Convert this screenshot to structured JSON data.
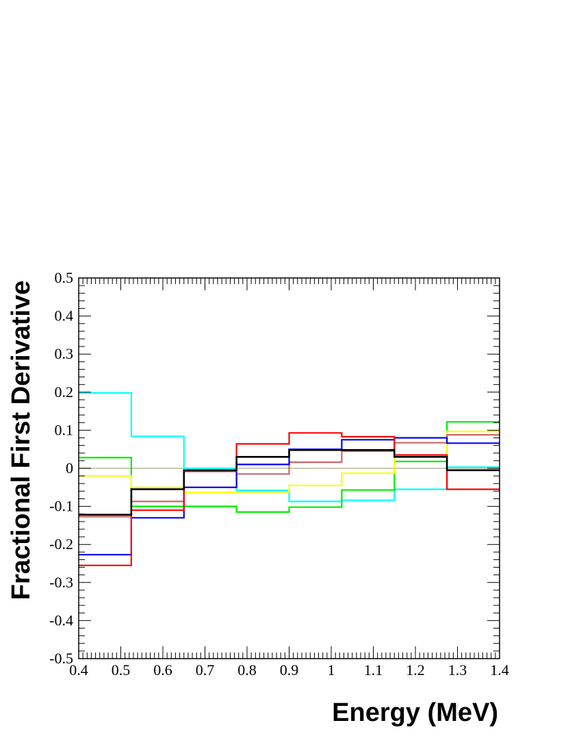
{
  "chart_data": {
    "type": "line",
    "title": "",
    "xlabel": "Energy (MeV)",
    "ylabel": "Fractional First Derivative",
    "xlim": [
      0.4,
      1.4
    ],
    "ylim": [
      -0.5,
      0.5
    ],
    "x_ticks": [
      "0.4",
      "0.5",
      "0.6",
      "0.7",
      "0.8",
      "0.9",
      "1",
      "1.1",
      "1.2",
      "1.3",
      "1.4"
    ],
    "y_ticks": [
      "-0.5",
      "-0.4",
      "-0.3",
      "-0.2",
      "-0.1",
      "0",
      "0.1",
      "0.2",
      "0.3",
      "0.4",
      "0.5"
    ],
    "grid": false,
    "bin_edges": [
      0.4,
      0.525,
      0.65,
      0.775,
      0.9,
      1.025,
      1.15,
      1.275,
      1.4
    ],
    "reference_line": {
      "y": 0,
      "color": "#c8c8b4"
    },
    "series": [
      {
        "color": "#00ffff",
        "values": [
          0.198,
          0.084,
          0.0,
          -0.058,
          -0.087,
          -0.084,
          -0.055,
          0.003
        ]
      },
      {
        "color": "#00ee00",
        "values": [
          0.028,
          -0.1,
          -0.1,
          -0.115,
          -0.102,
          -0.057,
          0.018,
          0.122
        ]
      },
      {
        "color": "#ffff00",
        "values": [
          -0.02,
          -0.05,
          -0.063,
          -0.062,
          -0.045,
          -0.013,
          0.03,
          0.097
        ]
      },
      {
        "color": "#cc6666",
        "values": [
          -0.127,
          -0.087,
          -0.05,
          -0.015,
          0.016,
          0.045,
          0.067,
          0.088
        ]
      },
      {
        "color": "#0000ff",
        "values": [
          -0.227,
          -0.13,
          -0.05,
          0.01,
          0.05,
          0.075,
          0.08,
          0.066
        ]
      },
      {
        "color": "#ff0000",
        "values": [
          -0.255,
          -0.11,
          -0.008,
          0.064,
          0.093,
          0.083,
          0.035,
          -0.055
        ]
      },
      {
        "color": "#000000",
        "values": [
          -0.122,
          -0.055,
          -0.005,
          0.03,
          0.048,
          0.048,
          0.03,
          -0.005
        ]
      }
    ]
  }
}
